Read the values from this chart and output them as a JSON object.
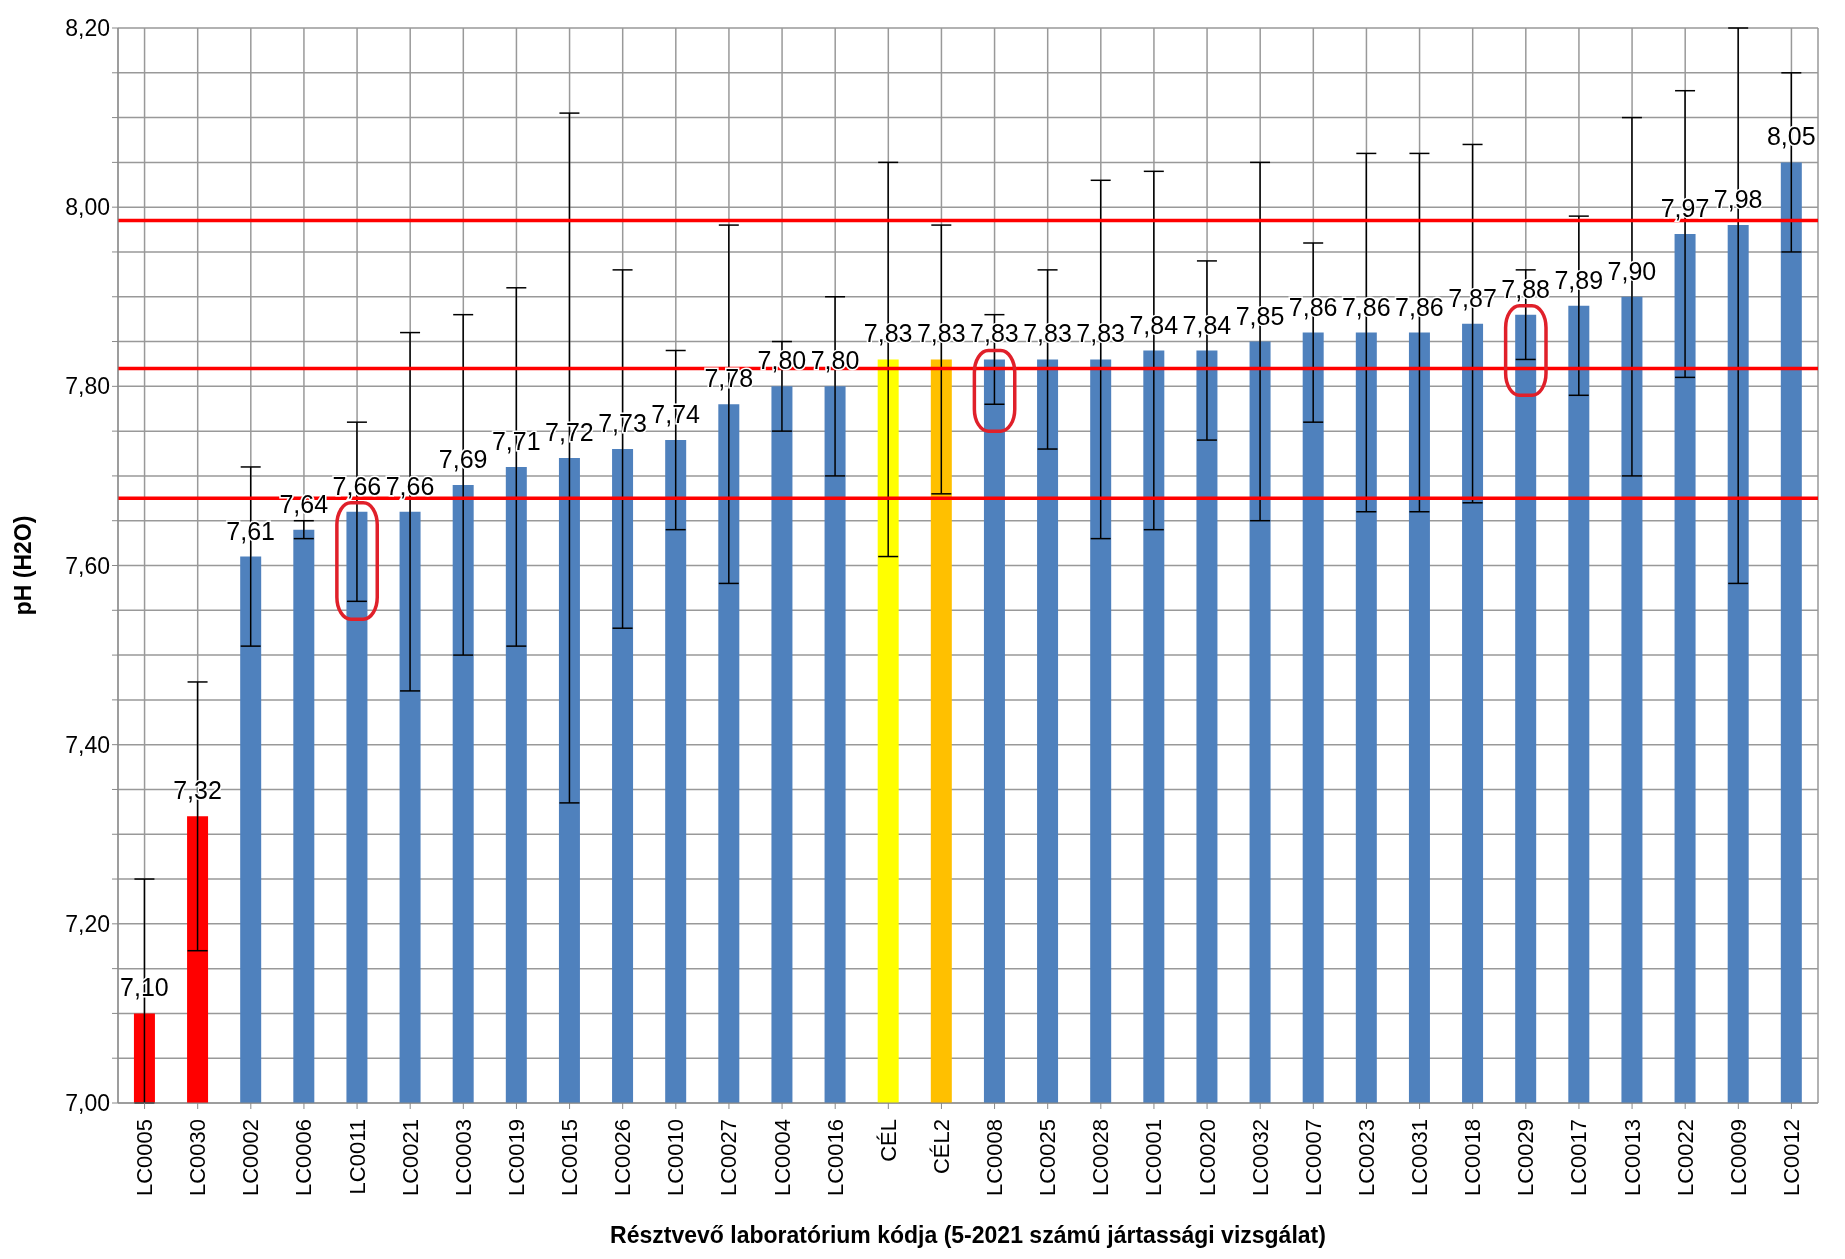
{
  "chart_data": {
    "type": "bar",
    "xlabel": "Résztvevő laboratórium kódja (5-2021 számú jártassági vizsgálat)",
    "ylabel": "pH (H2O)",
    "categories": [
      "LC0005",
      "LC0030",
      "LC0002",
      "LC0006",
      "LC0011",
      "LC0021",
      "LC0003",
      "LC0019",
      "LC0015",
      "LC0026",
      "LC0010",
      "LC0027",
      "LC0004",
      "LC0016",
      "CÉL",
      "CÉL2",
      "LC0008",
      "LC0025",
      "LC0028",
      "LC0001",
      "LC0020",
      "LC0032",
      "LC0007",
      "LC0023",
      "LC0031",
      "LC0018",
      "LC0029",
      "LC0017",
      "LC0013",
      "LC0022",
      "LC0009",
      "LC0012"
    ],
    "values": [
      7.1,
      7.32,
      7.61,
      7.64,
      7.66,
      7.66,
      7.69,
      7.71,
      7.72,
      7.73,
      7.74,
      7.78,
      7.8,
      7.8,
      7.83,
      7.83,
      7.83,
      7.83,
      7.83,
      7.84,
      7.84,
      7.85,
      7.86,
      7.86,
      7.86,
      7.87,
      7.88,
      7.89,
      7.9,
      7.97,
      7.98,
      8.05
    ],
    "value_labels": [
      "7,10",
      "7,32",
      "7,61",
      "7,64",
      "7,66",
      "7,66",
      "7,69",
      "7,71",
      "7,72",
      "7,73",
      "7,74",
      "7,78",
      "7,80",
      "7,80",
      "7,83",
      "7,83",
      "7,83",
      "7,83",
      "7,83",
      "7,84",
      "7,84",
      "7,85",
      "7,86",
      "7,86",
      "7,86",
      "7,87",
      "7,88",
      "7,89",
      "7,90",
      "7,97",
      "7,98",
      "8,05"
    ],
    "errors": [
      [
        7.0,
        7.25
      ],
      0.15,
      0.1,
      0.01,
      0.1,
      0.2,
      0.19,
      0.2,
      0.385,
      0.2,
      0.1,
      0.2,
      0.05,
      0.1,
      0.22,
      0.15,
      0.05,
      0.1,
      0.2,
      0.2,
      0.1,
      0.2,
      0.1,
      0.2,
      0.2,
      0.2,
      0.05,
      0.1,
      0.2,
      0.16,
      [
        7.58,
        8.2
      ],
      0.1
    ],
    "colors": [
      "#ff0000",
      "#ff0000",
      "#4f81bd",
      "#4f81bd",
      "#4f81bd",
      "#4f81bd",
      "#4f81bd",
      "#4f81bd",
      "#4f81bd",
      "#4f81bd",
      "#4f81bd",
      "#4f81bd",
      "#4f81bd",
      "#4f81bd",
      "#ffff00",
      "#ffc000",
      "#4f81bd",
      "#4f81bd",
      "#4f81bd",
      "#4f81bd",
      "#4f81bd",
      "#4f81bd",
      "#4f81bd",
      "#4f81bd",
      "#4f81bd",
      "#4f81bd",
      "#4f81bd",
      "#4f81bd",
      "#4f81bd",
      "#4f81bd",
      "#4f81bd",
      "#4f81bd"
    ],
    "ylim": [
      7.0,
      8.2
    ],
    "yticks": [
      {
        "value": 7.0,
        "label": "7,00"
      },
      {
        "value": 7.05,
        "label": null
      },
      {
        "value": 7.1,
        "label": null
      },
      {
        "value": 7.15,
        "label": null
      },
      {
        "value": 7.2,
        "label": "7,20"
      },
      {
        "value": 7.25,
        "label": null
      },
      {
        "value": 7.3,
        "label": null
      },
      {
        "value": 7.35,
        "label": null
      },
      {
        "value": 7.4,
        "label": "7,40"
      },
      {
        "value": 7.45,
        "label": null
      },
      {
        "value": 7.5,
        "label": null
      },
      {
        "value": 7.55,
        "label": null
      },
      {
        "value": 7.6,
        "label": "7,60"
      },
      {
        "value": 7.65,
        "label": null
      },
      {
        "value": 7.7,
        "label": null
      },
      {
        "value": 7.75,
        "label": null
      },
      {
        "value": 7.8,
        "label": "7,80"
      },
      {
        "value": 7.85,
        "label": null
      },
      {
        "value": 7.9,
        "label": null
      },
      {
        "value": 7.95,
        "label": null
      },
      {
        "value": 8.0,
        "label": "8,00"
      },
      {
        "value": 8.05,
        "label": null
      },
      {
        "value": 8.1,
        "label": null
      },
      {
        "value": 8.15,
        "label": null
      },
      {
        "value": 8.2,
        "label": "8,20"
      }
    ],
    "ref_lines": [
      {
        "axis": "y",
        "value": 7.985,
        "color": "#ff0000"
      },
      {
        "axis": "y",
        "value": 7.82,
        "color": "#ff0000"
      },
      {
        "axis": "y",
        "value": 7.675,
        "color": "#ff0000"
      }
    ],
    "grid": true,
    "legend": false
  }
}
